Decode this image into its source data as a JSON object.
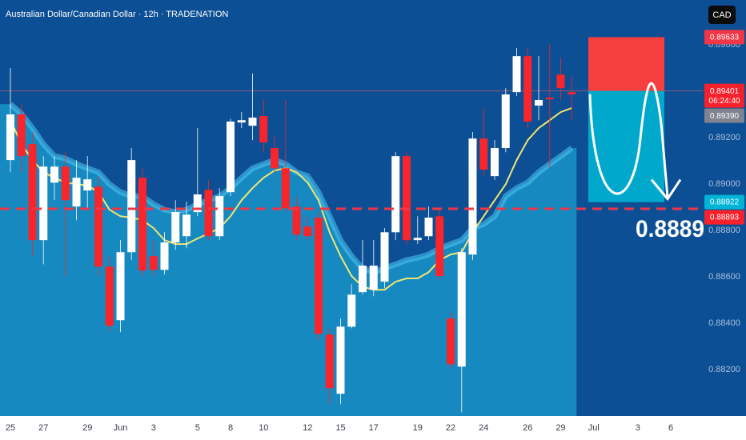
{
  "chart_data": {
    "type": "candlestick",
    "title": "Australian Dollar/Canadian Dollar · 12h · TRADENATION",
    "currency": "CAD",
    "categories": [
      "25",
      null,
      null,
      "27",
      null,
      null,
      null,
      "29",
      null,
      null,
      "Jun",
      null,
      null,
      "3",
      null,
      null,
      null,
      "5",
      null,
      null,
      "8",
      null,
      null,
      "10",
      null,
      null,
      null,
      "12",
      null,
      null,
      "15",
      null,
      null,
      "17",
      null,
      null,
      null,
      "19",
      null,
      null,
      "22",
      null,
      null,
      "24",
      null,
      null,
      null,
      "26",
      null,
      null,
      "29",
      null,
      null,
      "Jul",
      null,
      null,
      null,
      "3",
      null,
      null,
      "6"
    ],
    "open": [
      0.89103,
      0.893,
      0.89172,
      0.88758,
      0.89006,
      0.89075,
      0.88903,
      0.88972,
      0.88989,
      0.88644,
      0.88413,
      0.88706,
      0.89027,
      0.88689,
      0.8863,
      0.88748,
      0.88775,
      0.88879,
      0.88975,
      0.88775,
      0.88965,
      0.89265,
      0.89251,
      0.89293,
      0.89155,
      0.89068,
      0.88903,
      0.88817,
      0.88855,
      0.88351,
      0.88096,
      0.88385,
      0.88534,
      0.88544,
      0.88579,
      0.88792,
      0.8912,
      0.88758,
      0.88775,
      0.88861,
      0.8842,
      0.88213,
      0.88696,
      0.89196,
      0.89034,
      0.89155,
      0.89396,
      0.89551,
      0.89338,
      0.89372,
      0.89472,
      0.89396,
      null,
      null,
      null,
      null,
      null,
      null,
      null,
      null,
      null
    ],
    "high": [
      0.895,
      0.89344,
      0.89224,
      0.8912,
      0.8912,
      0.89137,
      0.89103,
      0.8912,
      0.89034,
      0.88689,
      0.88758,
      0.89155,
      0.89068,
      0.88758,
      0.88792,
      0.8893,
      0.88924,
      0.89241,
      0.89017,
      0.88982,
      0.89282,
      0.8931,
      0.89476,
      0.89362,
      0.89206,
      0.89362,
      0.88948,
      0.88861,
      0.88879,
      0.88378,
      0.8842,
      0.88568,
      0.88758,
      0.88758,
      0.8881,
      0.89137,
      0.89137,
      0.88861,
      0.88903,
      0.88889,
      0.88447,
      0.88723,
      0.89224,
      0.89327,
      0.89189,
      0.89413,
      0.89586,
      0.89586,
      0.89551,
      0.89603,
      0.89545,
      0.89465,
      null,
      null,
      null,
      null,
      null,
      null,
      null,
      null,
      null
    ],
    "low": [
      0.89051,
      0.89051,
      0.88689,
      0.88654,
      0.8893,
      0.88603,
      0.88844,
      0.88896,
      0.88603,
      0.88361,
      0.88361,
      0.88672,
      0.88603,
      0.88603,
      0.8861,
      0.88717,
      0.88723,
      0.88861,
      0.88758,
      0.88758,
      0.88948,
      0.89241,
      0.89189,
      0.89137,
      0.89051,
      0.88879,
      0.88758,
      0.88758,
      0.88327,
      0.88051,
      0.88051,
      0.88378,
      0.88523,
      0.88516,
      0.88551,
      0.88758,
      0.88741,
      0.88741,
      0.88758,
      0.88585,
      0.88206,
      0.88016,
      0.88672,
      0.89034,
      0.89017,
      0.89137,
      0.89379,
      0.89241,
      0.89275,
      0.89068,
      0.89362,
      0.89275,
      null,
      null,
      null,
      null,
      null,
      null,
      null,
      null,
      null
    ],
    "close": [
      0.893,
      0.8912,
      0.88758,
      0.89075,
      0.89075,
      0.8893,
      0.89027,
      0.8902,
      0.88644,
      0.88389,
      0.88706,
      0.89103,
      0.88627,
      0.8863,
      0.88748,
      0.88879,
      0.88868,
      0.88955,
      0.88775,
      0.88948,
      0.89269,
      0.89275,
      0.89286,
      0.89179,
      0.89068,
      0.88896,
      0.88782,
      0.88775,
      0.88354,
      0.8812,
      0.88385,
      0.88523,
      0.88648,
      0.88648,
      0.88792,
      0.8912,
      0.88758,
      0.88768,
      0.88855,
      0.88603,
      0.88223,
      0.88706,
      0.89196,
      0.89062,
      0.89155,
      0.89386,
      0.89551,
      0.89269,
      0.89362,
      0.89365,
      0.89413,
      0.89386,
      null,
      null,
      null,
      null,
      null,
      null,
      null,
      null,
      null
    ],
    "up_color": "#ffffff",
    "down_color": "#f7252c",
    "lines": [
      {
        "color": "#4fc8f2",
        "fill": "#1689c0",
        "values": [
          0.89344,
          0.89303,
          0.89241,
          0.89172,
          0.8912,
          0.8911,
          0.89086,
          0.89068,
          0.89051,
          0.88999,
          0.88965,
          0.88948,
          0.88948,
          0.88913,
          0.88889,
          0.88879,
          0.88889,
          0.88913,
          0.8893,
          0.88948,
          0.88982,
          0.89027,
          0.89068,
          0.89086,
          0.89103,
          0.89086,
          0.89051,
          0.89034,
          0.88965,
          0.88861,
          0.88758,
          0.88689,
          0.88637,
          0.8862,
          0.88637,
          0.88654,
          0.88672,
          0.88682,
          0.88696,
          0.88723,
          0.88741,
          0.88758,
          0.8881,
          0.88827,
          0.88861,
          0.88948,
          0.88982,
          0.89006,
          0.89051,
          0.89086,
          0.8912,
          0.89155,
          null,
          null,
          null,
          null,
          null,
          null,
          null,
          null,
          null
        ]
      },
      {
        "color": "#f3e670",
        "values": [
          0.89275,
          0.89172,
          0.89103,
          0.89051,
          0.89027,
          0.89006,
          0.88999,
          0.88993,
          0.88965,
          0.88889,
          0.88861,
          0.88855,
          0.88844,
          0.8881,
          0.88758,
          0.88741,
          0.88741,
          0.88765,
          0.88786,
          0.8881,
          0.88861,
          0.8893,
          0.88982,
          0.89027,
          0.89058,
          0.89068,
          0.89051,
          0.89006,
          0.8893,
          0.88792,
          0.88689,
          0.88603,
          0.88558,
          0.88544,
          0.88544,
          0.88579,
          0.88593,
          0.88593,
          0.8862,
          0.88672,
          0.88696,
          0.88706,
          0.88792,
          0.88861,
          0.8893,
          0.88999,
          0.89103,
          0.89189,
          0.89241,
          0.89275,
          0.8931,
          0.89327,
          null,
          null,
          null,
          null,
          null,
          null,
          null,
          null,
          null
        ]
      }
    ],
    "ylim": [
      0.88,
      0.89793
    ],
    "yticks": [
      {
        "value": 0.896,
        "label": "0.89600"
      },
      {
        "value": 0.892,
        "label": "0.89200"
      },
      {
        "value": 0.89,
        "label": "0.89000"
      },
      {
        "value": 0.888,
        "label": "0.88800"
      },
      {
        "value": 0.886,
        "label": "0.88600"
      },
      {
        "value": 0.884,
        "label": "0.88400"
      },
      {
        "value": 0.882,
        "label": "0.88200"
      }
    ],
    "position": {
      "stop": 0.89633,
      "entry": 0.89401,
      "target": 0.88922,
      "stop_color": "#f5403f",
      "target_color": "#00a9cc"
    },
    "level": 0.88893,
    "annotation": "0.8889",
    "price_labels": [
      {
        "value": 0.89633,
        "color": "#f23645"
      },
      {
        "value": 0.89401,
        "sublabel": "06:24:40",
        "color": "#f7212c"
      },
      {
        "value": 0.8939,
        "label": "0.89390",
        "color": "#7f838f"
      },
      {
        "value": 0.88922,
        "color": "#00b4d8"
      },
      {
        "value": 0.88893,
        "color": "#f7212c"
      }
    ]
  }
}
